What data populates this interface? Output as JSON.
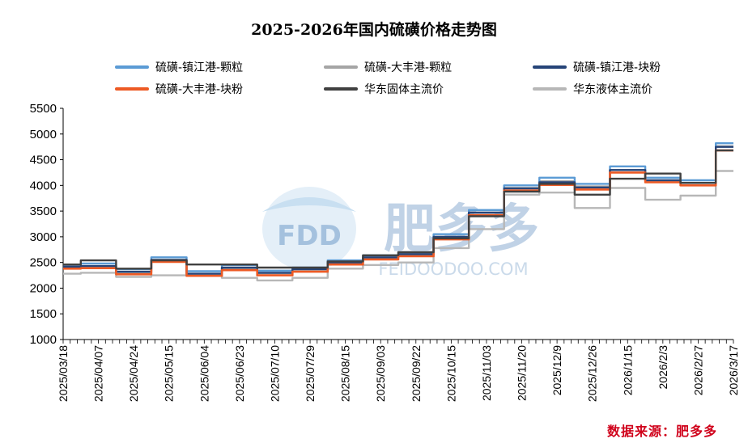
{
  "chart_data": {
    "type": "line",
    "title": "2025-2026年国内硫磺价格走势图",
    "xlabel": "",
    "ylabel": "",
    "ylim": [
      1000,
      5500
    ],
    "yticks": [
      1000,
      1500,
      2000,
      2500,
      3000,
      3500,
      4000,
      4500,
      5000,
      5500
    ],
    "categories": [
      "2025/03/18",
      "2025/04/07",
      "2025/04/24",
      "2025/05/15",
      "2025/06/04",
      "2025/06/23",
      "2025/07/10",
      "2025/07/29",
      "2025/08/15",
      "2025/09/03",
      "2025/09/22",
      "2025/10/15",
      "2025/11/03",
      "2025/11/20",
      "2025/12/9",
      "2025/12/26",
      "2026/1/15",
      "2026/2/3",
      "2026/2/27",
      "2026/3/17"
    ],
    "legend_position": "top",
    "grid": false,
    "series": [
      {
        "name": "硫磺-镇江港-颗粒",
        "color": "#5b9bd5",
        "values": [
          2460,
          2480,
          2370,
          2600,
          2330,
          2450,
          2340,
          2400,
          2540,
          2640,
          2700,
          3050,
          3520,
          4000,
          4150,
          4030,
          4370,
          4150,
          4100,
          4820
        ]
      },
      {
        "name": "硫磺-大丰港-颗粒",
        "color": "#a5a5a5",
        "values": [
          2400,
          2420,
          2300,
          2540,
          2260,
          2380,
          2290,
          2360,
          2490,
          2590,
          2660,
          3000,
          3470,
          3950,
          4080,
          3980,
          4300,
          4080,
          4050,
          4760
        ]
      },
      {
        "name": "硫磺-镇江港-块粉",
        "color": "#264478",
        "values": [
          2420,
          2430,
          2320,
          2550,
          2280,
          2400,
          2300,
          2370,
          2500,
          2600,
          2660,
          3000,
          3470,
          3940,
          4060,
          3960,
          4300,
          4100,
          4050,
          4750
        ]
      },
      {
        "name": "硫磺-大丰港-块粉",
        "color": "#ed5a24",
        "values": [
          2380,
          2390,
          2270,
          2510,
          2240,
          2350,
          2250,
          2320,
          2460,
          2560,
          2620,
          2950,
          3420,
          3900,
          4010,
          3920,
          4250,
          4060,
          4000,
          4680
        ]
      },
      {
        "name": "华东固体主流价",
        "color": "#404040",
        "values": [
          2460,
          2540,
          2380,
          2540,
          2460,
          2460,
          2400,
          2400,
          2520,
          2640,
          2700,
          2970,
          3400,
          3880,
          4030,
          3820,
          4130,
          4230,
          4050,
          4680
        ]
      },
      {
        "name": "华东液体主流价",
        "color": "#b7b7b7",
        "values": [
          2280,
          2300,
          2220,
          2250,
          2250,
          2200,
          2150,
          2200,
          2380,
          2450,
          2500,
          2780,
          3150,
          3820,
          3860,
          3560,
          3950,
          3720,
          3800,
          4280
        ]
      }
    ]
  },
  "watermark": {
    "brand": "FDD",
    "cn": "肥多多",
    "url": "FEIDOODOO.COM"
  },
  "source": "数据来源：肥多多"
}
